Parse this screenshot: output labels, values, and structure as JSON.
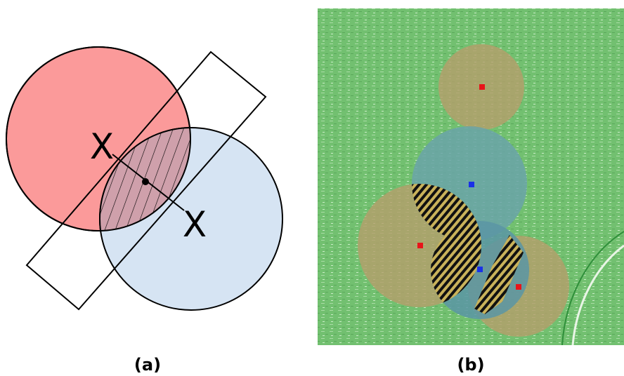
{
  "panels": [
    {
      "label": "(a)",
      "markers": [
        "X",
        "X"
      ]
    },
    {
      "label": "(b)"
    }
  ]
}
